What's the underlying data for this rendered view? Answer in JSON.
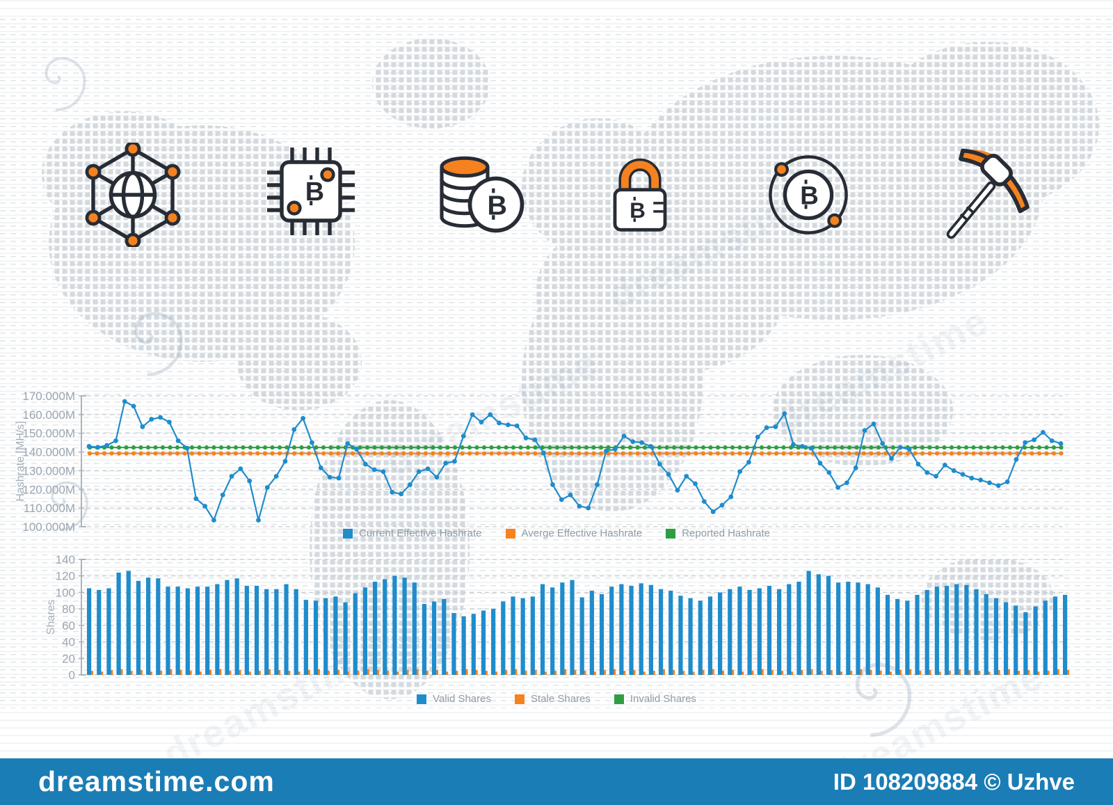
{
  "watermark": {
    "site": "dreamstime.com",
    "credit": "ID 108209884 © Uzhve",
    "diagonal_text": "dreamstime"
  },
  "icons": [
    {
      "name": "blockchain-network-icon"
    },
    {
      "name": "cpu-bitcoin-icon"
    },
    {
      "name": "bitcoin-coins-icon"
    },
    {
      "name": "bitcoin-lock-icon"
    },
    {
      "name": "bitcoin-orbit-icon"
    },
    {
      "name": "mining-pickaxe-icon"
    }
  ],
  "chart_data": [
    {
      "type": "line",
      "title": "",
      "xlabel": "",
      "ylabel": "Hashrate [MH/s]",
      "ylim": [
        100,
        170
      ],
      "grid": true,
      "legend_position": "bottom",
      "yticks": [
        {
          "value": 170,
          "label": "170.000M"
        },
        {
          "value": 160,
          "label": "160.000M"
        },
        {
          "value": 150,
          "label": "150.000M"
        },
        {
          "value": 140,
          "label": "140.000M"
        },
        {
          "value": 130,
          "label": "130.000M"
        },
        {
          "value": 120,
          "label": "120.000M"
        },
        {
          "value": 110,
          "label": "110.000M"
        },
        {
          "value": 100,
          "label": "100.000M"
        }
      ],
      "unit": "MH/s (millions)",
      "series": [
        {
          "name": "Current Effective Hashrate",
          "color": "#1f8ccc",
          "values": [
            143,
            142.5,
            143.5,
            146,
            167,
            164.5,
            153.5,
            157.5,
            158.5,
            156,
            146,
            142,
            115,
            111,
            103.5,
            117,
            127,
            131,
            124.5,
            103.5,
            121,
            127,
            135,
            152,
            158,
            145,
            131.5,
            126.5,
            126,
            144.5,
            141.5,
            133.5,
            130.5,
            129.5,
            118.5,
            117.5,
            122.5,
            129.5,
            131,
            126.5,
            134,
            135,
            148.5,
            160,
            156,
            160,
            155.5,
            154.5,
            154,
            147.5,
            146.5,
            139.5,
            122.5,
            114.5,
            117,
            111,
            110,
            122.5,
            140.5,
            141.5,
            148.5,
            145.5,
            145,
            143,
            133.5,
            128,
            119.5,
            127,
            123,
            113.5,
            108,
            111.5,
            116,
            129.5,
            134.5,
            148,
            153,
            153.5,
            160.5,
            144,
            143,
            142,
            134,
            129,
            121,
            123.5,
            131.5,
            151.5,
            155,
            144.5,
            136.5,
            142.5,
            141.5,
            133.5,
            129,
            127,
            133,
            130,
            128,
            126,
            125,
            123.5,
            122,
            124,
            136,
            145,
            146.5,
            150.5,
            146,
            144.5
          ]
        },
        {
          "name": "Averge Effective Hashrate",
          "color": "#f5821f",
          "flat": 139.2
        },
        {
          "name": "Reported Hashrate",
          "color": "#2f9e41",
          "flat": 142.4
        }
      ]
    },
    {
      "type": "bar",
      "title": "",
      "xlabel": "",
      "ylabel": "Shares",
      "ylim": [
        0,
        140
      ],
      "grid": true,
      "legend_position": "bottom",
      "yticks": [
        {
          "value": 140,
          "label": "140"
        },
        {
          "value": 120,
          "label": "120"
        },
        {
          "value": 100,
          "label": "100"
        },
        {
          "value": 80,
          "label": "80"
        },
        {
          "value": 60,
          "label": "60"
        },
        {
          "value": 40,
          "label": "40"
        },
        {
          "value": 20,
          "label": "20"
        },
        {
          "value": 0,
          "label": "0"
        }
      ],
      "series": [
        {
          "name": "Valid Shares",
          "color": "#1f8ccc",
          "values": [
            105,
            103,
            105,
            124,
            126,
            114,
            118,
            117,
            107,
            107,
            105,
            107,
            107,
            110,
            115,
            117,
            108,
            108,
            104,
            104,
            110,
            104,
            91,
            90,
            93,
            95,
            88,
            99,
            106,
            113,
            116,
            120,
            118,
            112,
            86,
            89,
            92,
            75,
            71,
            74,
            78,
            80,
            89,
            95,
            93,
            95,
            110,
            106,
            112,
            115,
            94,
            102,
            98,
            107,
            110,
            108,
            111,
            109,
            104,
            102,
            96,
            93,
            90,
            95,
            100,
            104,
            107,
            103,
            105,
            108,
            104,
            110,
            113,
            126,
            122,
            120,
            112,
            113,
            112,
            110,
            106,
            97,
            92,
            90,
            97,
            103,
            107,
            108,
            110,
            109,
            104,
            98,
            93,
            88,
            84,
            76,
            83,
            90,
            95,
            97
          ]
        },
        {
          "name": "Stale Shares",
          "color": "#f5821f",
          "values": [
            5,
            4,
            6,
            7,
            5,
            6,
            4,
            5,
            7,
            6,
            5,
            4,
            6,
            7,
            5,
            6,
            4,
            5,
            7,
            6,
            5,
            4,
            6,
            7,
            5,
            6,
            4,
            5,
            7,
            6,
            5,
            4,
            6,
            7,
            5,
            6,
            4,
            5,
            7,
            6,
            5,
            4,
            6,
            7,
            5,
            6,
            4,
            5,
            7,
            6,
            5,
            4,
            6,
            7,
            5,
            6,
            4,
            5,
            7,
            6,
            5,
            4,
            6,
            7,
            5,
            6,
            4,
            5,
            7,
            6,
            5,
            4,
            6,
            7,
            5,
            6,
            4,
            5,
            7,
            6,
            5,
            4,
            6,
            7,
            5,
            6,
            4,
            5,
            7,
            6,
            5,
            4,
            6,
            7,
            5,
            6,
            4,
            5,
            7,
            6
          ]
        },
        {
          "name": "Invalid Shares",
          "color": "#2f9e41",
          "flat": 0
        }
      ]
    }
  ]
}
